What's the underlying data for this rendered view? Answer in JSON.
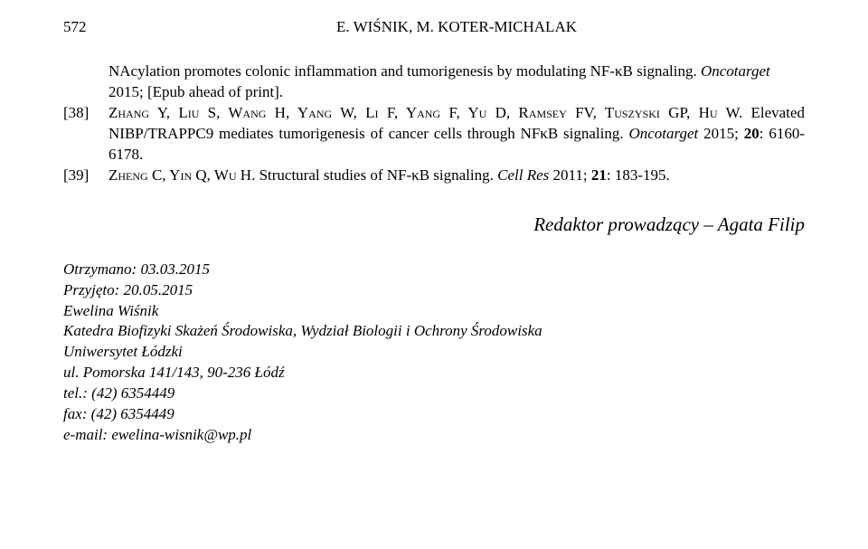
{
  "page_number": "572",
  "header_authors": "E. WIŚNIK, M. KOTER-MICHALAK",
  "ref_pre": {
    "text_a": "NAcylation promotes colonic inflammation and tumorigenesis by modulating NF-κB signaling. ",
    "journal": "Oncotarget",
    "text_b": " 2015; [Epub ahead of print]."
  },
  "ref38": {
    "num": "[38]",
    "authors": "Zhang Y, Liu S, Wang H, Yang W, Li F, Yang F, Yu D, Ramsey FV, Tuszyski GP, Hu W.",
    "text_a": " Elevated NIBP/TRAPPC9 mediates tumorigenesis of cancer cells through NFκB signaling. ",
    "journal": "Oncotarget",
    "text_b": " 2015; ",
    "vol": "20",
    "text_c": ": 6160-6178."
  },
  "ref39": {
    "num": "[39]",
    "authors": "Zheng C, Yin Q, Wu H.",
    "text_a": " Structural studies of NF-κB signaling. ",
    "journal": "Cell Res",
    "text_b": " 2011; ",
    "vol": "21",
    "text_c": ": 183-195."
  },
  "editor_line": "Redaktor prowadzący – Agata Filip",
  "footer": {
    "received": "Otrzymano: 03.03.2015",
    "accepted": "Przyjęto: 20.05.2015",
    "author": "Ewelina Wiśnik",
    "affiliation": "Katedra Biofizyki Skażeń Środowiska, Wydział Biologii i Ochrony Środowiska",
    "university": "Uniwersytet Łódzki",
    "address": "ul. Pomorska 141/143, 90-236 Łódź",
    "tel": "tel.: (42) 6354449",
    "fax": "fax: (42) 6354449",
    "email": "e-mail: ewelina-wisnik@wp.pl"
  }
}
